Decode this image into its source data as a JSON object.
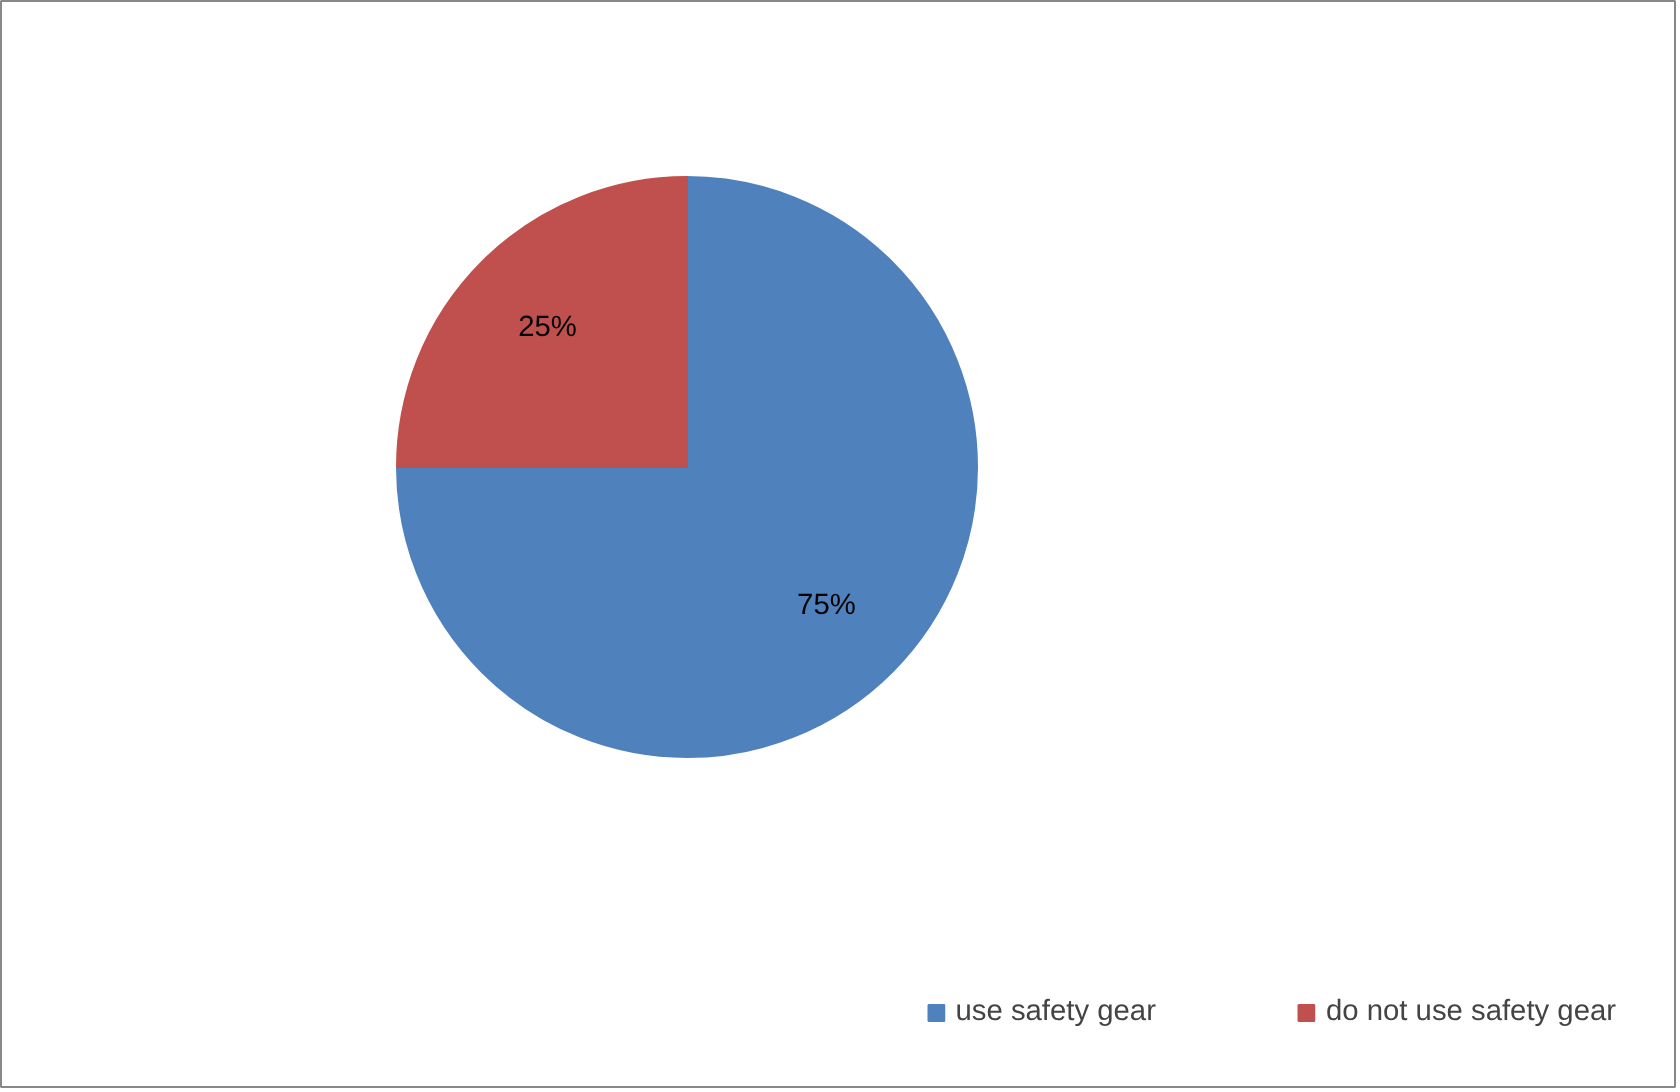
{
  "chart_data": {
    "type": "pie",
    "categories": [
      "use safety gear",
      "do not use safety gear"
    ],
    "values": [
      75,
      25
    ],
    "colors": [
      "#4f81bd",
      "#c0504d"
    ],
    "value_labels": [
      "75%",
      "25%"
    ],
    "legend": "bottom right"
  }
}
